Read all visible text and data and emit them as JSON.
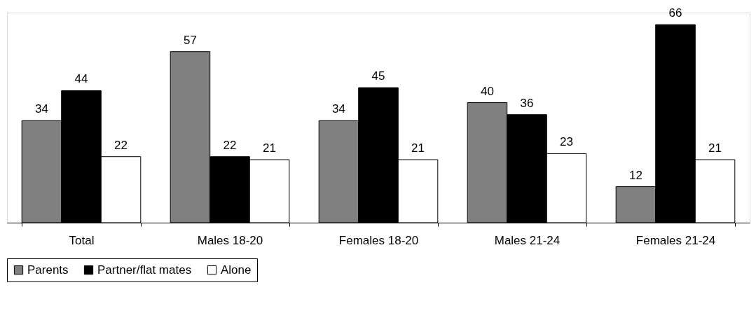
{
  "chart_data": {
    "type": "bar",
    "categories": [
      "Total",
      "Males 18-20",
      "Females 18-20",
      "Males 21-24",
      "Females 21-24"
    ],
    "series": [
      {
        "name": "Parents",
        "color": "#808080",
        "values": [
          34,
          57,
          34,
          40,
          12
        ]
      },
      {
        "name": "Partner/flat mates",
        "color": "#000000",
        "values": [
          44,
          22,
          45,
          36,
          66
        ]
      },
      {
        "name": "Alone",
        "color": "#ffffff",
        "values": [
          22,
          21,
          21,
          23,
          21
        ]
      }
    ],
    "data_labels": true,
    "legend": "bottom",
    "grid": false,
    "tick_labels": "x"
  }
}
